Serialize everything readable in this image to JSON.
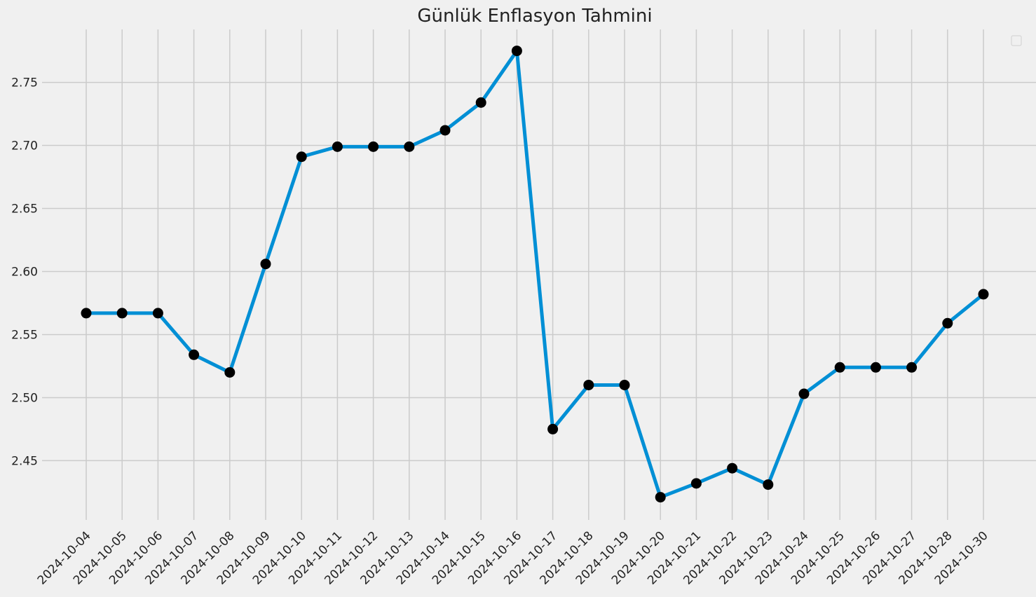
{
  "chart_data": {
    "type": "line",
    "title": "Günlük Enflasyon Tahmini",
    "xlabel": "",
    "ylabel": "",
    "categories": [
      "2024-10-04",
      "2024-10-05",
      "2024-10-06",
      "2024-10-07",
      "2024-10-08",
      "2024-10-09",
      "2024-10-10",
      "2024-10-11",
      "2024-10-12",
      "2024-10-13",
      "2024-10-14",
      "2024-10-15",
      "2024-10-16",
      "2024-10-17",
      "2024-10-18",
      "2024-10-19",
      "2024-10-20",
      "2024-10-21",
      "2024-10-22",
      "2024-10-23",
      "2024-10-24",
      "2024-10-25",
      "2024-10-26",
      "2024-10-27",
      "2024-10-28",
      "2024-10-30"
    ],
    "series": [
      {
        "values": [
          2.567,
          2.567,
          2.567,
          2.534,
          2.52,
          2.606,
          2.691,
          2.699,
          2.699,
          2.699,
          2.712,
          2.734,
          2.775,
          2.475,
          2.51,
          2.51,
          2.421,
          2.432,
          2.444,
          2.431,
          2.503,
          2.524,
          2.524,
          2.524,
          2.559,
          2.582
        ],
        "color": "#008fd5",
        "marker_color": "#000000"
      }
    ],
    "yticks": [
      2.45,
      2.5,
      2.55,
      2.6,
      2.65,
      2.7,
      2.75
    ],
    "ytick_labels": [
      "2.45",
      "2.50",
      "2.55",
      "2.60",
      "2.65",
      "2.70",
      "2.75"
    ],
    "ylim": [
      2.403,
      2.792
    ],
    "grid": true,
    "legend": {
      "placement": "top-right",
      "entries": []
    },
    "background": "#f0f0f0"
  }
}
